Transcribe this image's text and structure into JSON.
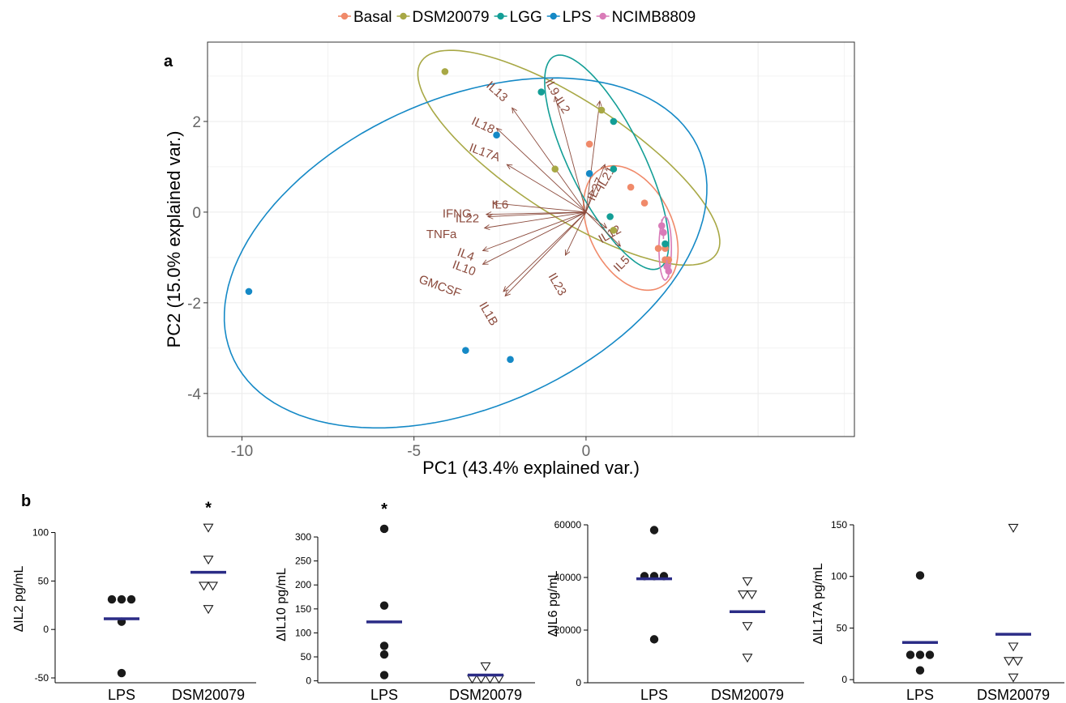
{
  "chart_data": [
    {
      "type": "scatter",
      "panel": "a",
      "xlabel": "PC1 (43.4% explained var.)",
      "ylabel": "PC2 (15.0% explained var.)",
      "xlim": [
        -11,
        7.8
      ],
      "ylim": [
        -4.95,
        3.75
      ],
      "xticks": [
        -10,
        -5,
        0
      ],
      "yticks": [
        -4,
        -2,
        0,
        2
      ],
      "grid": true,
      "legend_position": "top",
      "legend": [
        "Basal",
        "DSM20079",
        "LGG",
        "LPS",
        "NCIMB8809"
      ],
      "colors": {
        "Basal": "#F08A6A",
        "DSM20079": "#A8A845",
        "LGG": "#139E96",
        "LPS": "#1589C6",
        "NCIMB8809": "#D97BB8",
        "loading": "#8B4A3C",
        "mean_bar": "#2B2C86"
      },
      "series": [
        {
          "name": "Basal",
          "points": [
            [
              0.1,
              1.5
            ],
            [
              1.3,
              0.55
            ],
            [
              1.7,
              0.2
            ],
            [
              2.1,
              -0.8
            ],
            [
              2.3,
              -0.8
            ],
            [
              2.3,
              -1.05
            ],
            [
              2.4,
              -1.05
            ]
          ]
        },
        {
          "name": "DSM20079",
          "points": [
            [
              -4.1,
              3.1
            ],
            [
              0.45,
              2.25
            ],
            [
              -0.9,
              0.95
            ],
            [
              0.8,
              -0.4
            ]
          ]
        },
        {
          "name": "LGG",
          "points": [
            [
              -1.3,
              2.65
            ],
            [
              0.8,
              2.0
            ],
            [
              0.8,
              0.95
            ],
            [
              0.7,
              -0.1
            ],
            [
              2.3,
              -0.7
            ]
          ]
        },
        {
          "name": "LPS",
          "points": [
            [
              -9.8,
              -1.75
            ],
            [
              -2.6,
              1.7
            ],
            [
              0.1,
              0.85
            ],
            [
              -3.5,
              -3.05
            ],
            [
              -2.2,
              -3.25
            ]
          ]
        },
        {
          "name": "NCIMB8809",
          "points": [
            [
              2.2,
              -0.3
            ],
            [
              2.25,
              -0.45
            ],
            [
              2.35,
              -1.2
            ],
            [
              2.4,
              -1.3
            ]
          ]
        }
      ],
      "ellipses": [
        {
          "name": "Basal",
          "center": [
            1.3,
            -0.35
          ],
          "rx": 1.6,
          "ry": 1.1,
          "angle": -45
        },
        {
          "name": "DSM20079",
          "center": [
            -0.5,
            1.2
          ],
          "rx": 4.8,
          "ry": 1.35,
          "angle": -25
        },
        {
          "name": "LGG",
          "center": [
            0.6,
            1.1
          ],
          "rx": 2.8,
          "ry": 1.0,
          "angle": -55
        },
        {
          "name": "LPS",
          "center": [
            -3.5,
            -0.9
          ],
          "rx": 7.2,
          "ry": 3.5,
          "angle": 15
        },
        {
          "name": "NCIMB8809",
          "center": [
            2.3,
            -0.8
          ],
          "rx": 0.18,
          "ry": 0.7,
          "angle": 0
        }
      ],
      "loadings": [
        {
          "name": "IL13",
          "end": [
            -2.15,
            2.3
          ],
          "label_at": [
            -2.6,
            2.65
          ],
          "rotate": 42
        },
        {
          "name": "IL18",
          "end": [
            -2.6,
            1.85
          ],
          "label_at": [
            -3.0,
            1.9
          ],
          "rotate": 25
        },
        {
          "name": "IL17A",
          "end": [
            -2.3,
            1.05
          ],
          "label_at": [
            -2.95,
            1.3
          ],
          "rotate": 20
        },
        {
          "name": "IL9",
          "end": [
            -0.9,
            2.55
          ],
          "label_at": [
            -1.0,
            2.75
          ],
          "rotate": 62
        },
        {
          "name": "IL2",
          "end": [
            0.4,
            2.45
          ],
          "label_at": [
            -0.7,
            2.35
          ],
          "rotate": 58
        },
        {
          "name": "IL21",
          "end": [
            0.55,
            1.05
          ],
          "label_at": [
            0.6,
            0.75
          ],
          "rotate": -60
        },
        {
          "name": "IL27",
          "end": [
            0.2,
            0.5
          ],
          "label_at": [
            0.3,
            0.5
          ],
          "rotate": -65
        },
        {
          "name": "IL6",
          "end": [
            -2.7,
            0.2
          ],
          "label_at": [
            -2.5,
            0.15
          ],
          "rotate": 0
        },
        {
          "name": "IFNG",
          "end": [
            -2.9,
            -0.05
          ],
          "label_at": [
            -3.75,
            -0.05
          ],
          "rotate": 0
        },
        {
          "name": "IL22",
          "end": [
            -2.85,
            -0.1
          ],
          "label_at": [
            -3.45,
            -0.15
          ],
          "rotate": 0
        },
        {
          "name": "TNFa",
          "end": [
            -2.95,
            -0.35
          ],
          "label_at": [
            -4.2,
            -0.5
          ],
          "rotate": 0
        },
        {
          "name": "IL4",
          "end": [
            -3.0,
            -0.85
          ],
          "label_at": [
            -3.5,
            -0.95
          ],
          "rotate": 20
        },
        {
          "name": "IL10",
          "end": [
            -3.0,
            -1.15
          ],
          "label_at": [
            -3.55,
            -1.25
          ],
          "rotate": 20
        },
        {
          "name": "GMCSF",
          "end": [
            -2.4,
            -1.75
          ],
          "label_at": [
            -4.25,
            -1.65
          ],
          "rotate": 20
        },
        {
          "name": "IL1B",
          "end": [
            -2.35,
            -1.85
          ],
          "label_at": [
            -2.85,
            -2.25
          ],
          "rotate": 60
        },
        {
          "name": "IL23",
          "end": [
            -0.6,
            -0.95
          ],
          "label_at": [
            -0.85,
            -1.6
          ],
          "rotate": 60
        },
        {
          "name": "IL12",
          "end": [
            0.6,
            -0.35
          ],
          "label_at": [
            0.7,
            -0.5
          ],
          "rotate": -30
        },
        {
          "name": "IL5",
          "end": [
            1.0,
            -0.75
          ],
          "label_at": [
            1.05,
            -1.15
          ],
          "rotate": -45
        }
      ]
    },
    {
      "type": "scatter",
      "panel": "b",
      "ylabel": "ΔIL2 pg/mL",
      "categories": [
        "LPS",
        "DSM20079"
      ],
      "ylim": [
        -55,
        118
      ],
      "yticks": [
        -50,
        0,
        50,
        100
      ],
      "significance": {
        "category": "DSM20079",
        "label": "*"
      },
      "series": [
        {
          "name": "LPS",
          "marker": "filled-circle",
          "values": [
            31,
            31,
            31,
            8,
            -45
          ],
          "mean": 11
        },
        {
          "name": "DSM20079",
          "marker": "open-triangle",
          "values": [
            105,
            72,
            45,
            45,
            21
          ],
          "mean": 59
        }
      ]
    },
    {
      "type": "scatter",
      "panel": "b",
      "ylabel": "ΔIL10 pg/mL",
      "categories": [
        "LPS",
        "DSM20079"
      ],
      "ylim": [
        -4,
        322
      ],
      "yticks": [
        0,
        50,
        100,
        150,
        200,
        250,
        300
      ],
      "significance": {
        "category": "LPS",
        "label": "*"
      },
      "series": [
        {
          "name": "LPS",
          "marker": "filled-circle",
          "values": [
            317,
            157,
            73,
            55,
            12
          ],
          "mean": 123
        },
        {
          "name": "DSM20079",
          "marker": "open-triangle",
          "values": [
            30,
            4,
            4,
            4,
            4
          ],
          "mean": 12
        }
      ]
    },
    {
      "type": "scatter",
      "panel": "b",
      "ylabel": "ΔIL6 pg/mL",
      "categories": [
        "LPS",
        "DSM20079"
      ],
      "ylim": [
        0,
        60000
      ],
      "yticks": [
        0,
        20000,
        40000,
        60000
      ],
      "series": [
        {
          "name": "LPS",
          "marker": "filled-circle",
          "values": [
            58000,
            40500,
            40500,
            40500,
            16500
          ],
          "mean": 39500
        },
        {
          "name": "DSM20079",
          "marker": "open-triangle",
          "values": [
            38500,
            33500,
            33500,
            21500,
            9500
          ],
          "mean": 27000
        }
      ]
    },
    {
      "type": "scatter",
      "panel": "b",
      "ylabel": "ΔIL17A pg/mL",
      "categories": [
        "LPS",
        "DSM20079"
      ],
      "ylim": [
        -3,
        150
      ],
      "yticks": [
        0,
        50,
        100,
        150
      ],
      "series": [
        {
          "name": "LPS",
          "marker": "filled-circle",
          "values": [
            101,
            24,
            24,
            24,
            9
          ],
          "mean": 36
        },
        {
          "name": "DSM20079",
          "marker": "open-triangle",
          "values": [
            147,
            32,
            18,
            18,
            2
          ],
          "mean": 44
        }
      ]
    }
  ],
  "panel_labels": {
    "a": "a",
    "b": "b"
  }
}
